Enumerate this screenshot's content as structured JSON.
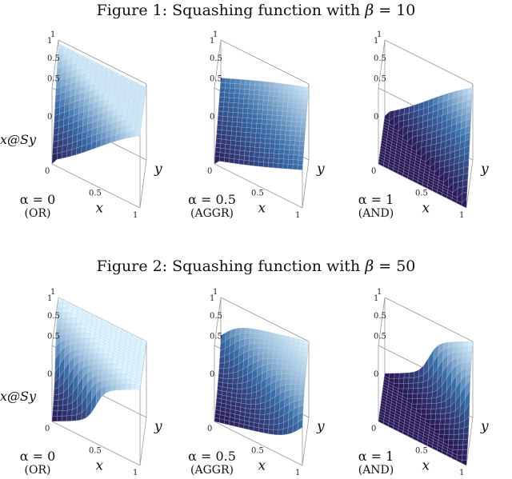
{
  "figures": [
    {
      "title_prefix": "Figure 1:  Squashing function with ",
      "beta_symbol": "β",
      "beta_value": " = 10",
      "beta": 10,
      "panels": [
        {
          "alpha_label": "α = 0",
          "alpha": 0,
          "caption": "(OR)"
        },
        {
          "alpha_label": "α = 0.5",
          "alpha": 0.5,
          "caption": "(AGGR)"
        },
        {
          "alpha_label": "α = 1",
          "alpha": 1,
          "caption": "(AND)"
        }
      ]
    },
    {
      "title_prefix": "Figure 2:  Squashing function with ",
      "beta_symbol": "β",
      "beta_value": " = 50",
      "beta": 50,
      "panels": [
        {
          "alpha_label": "α = 0",
          "alpha": 0,
          "caption": "(OR)"
        },
        {
          "alpha_label": "α = 0.5",
          "alpha": 0.5,
          "caption": "(AGGR)"
        },
        {
          "alpha_label": "α = 1",
          "alpha": 1,
          "caption": "(AND)"
        }
      ]
    }
  ],
  "zaxis_label": "x@Sy",
  "axis_labels": {
    "x": "x",
    "y": "y"
  },
  "ticks": {
    "zero": "0",
    "half": "0.5",
    "one": "1"
  },
  "colors": {
    "low": "#2a1754",
    "mid": "#3a6fa8",
    "high": "#dff6ff",
    "mesh": "#b8c8e8",
    "box": "#999999"
  }
}
